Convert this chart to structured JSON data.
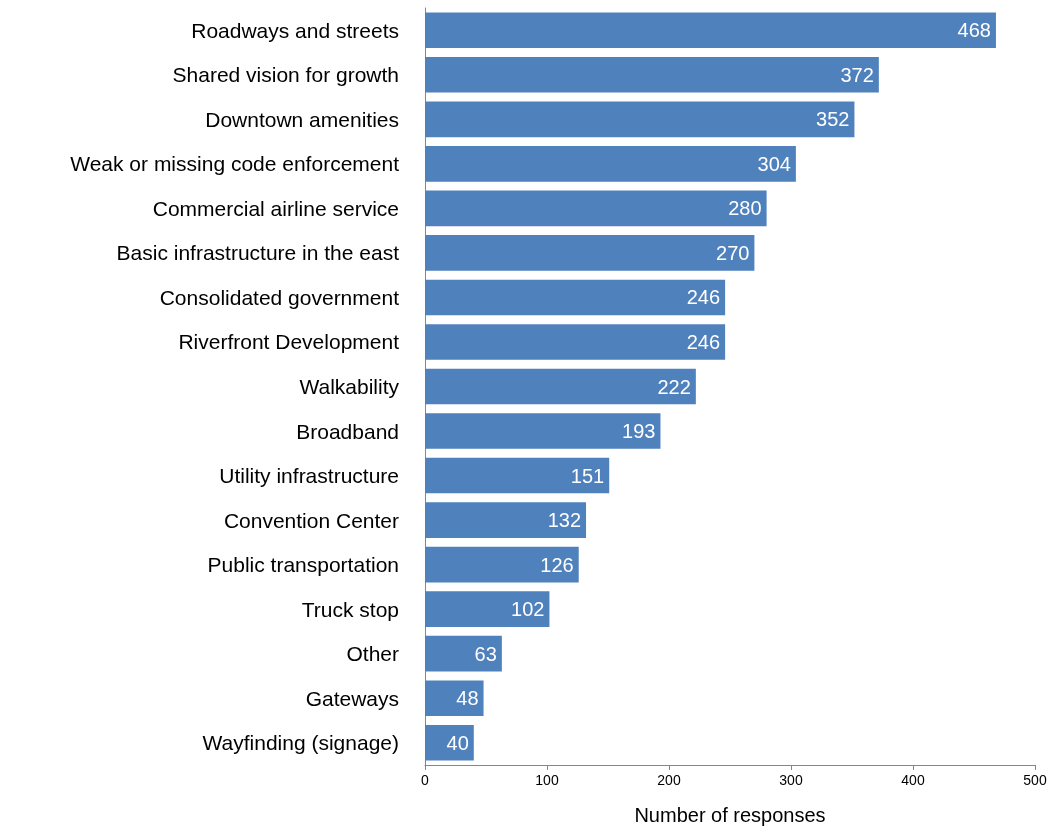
{
  "chart_data": {
    "type": "bar",
    "orientation": "horizontal",
    "xlabel": "Number of responses",
    "categories": [
      "Roadways and streets",
      "Shared vision for growth",
      "Downtown amenities",
      "Weak or missing code enforcement",
      "Commercial airline service",
      "Basic infrastructure in the east",
      "Consolidated government",
      "Riverfront Development",
      "Walkability",
      "Broadband",
      "Utility infrastructure",
      "Convention Center",
      "Public transportation",
      "Truck stop",
      "Other",
      "Gateways",
      "Wayfinding (signage)"
    ],
    "values": [
      468,
      372,
      352,
      304,
      280,
      270,
      246,
      246,
      222,
      193,
      151,
      132,
      126,
      102,
      63,
      48,
      40
    ],
    "color": "#4f81bd",
    "xlim": [
      0,
      500
    ],
    "xticks": [
      0,
      100,
      200,
      300,
      400,
      500
    ],
    "grid": false,
    "data_labels": true
  }
}
